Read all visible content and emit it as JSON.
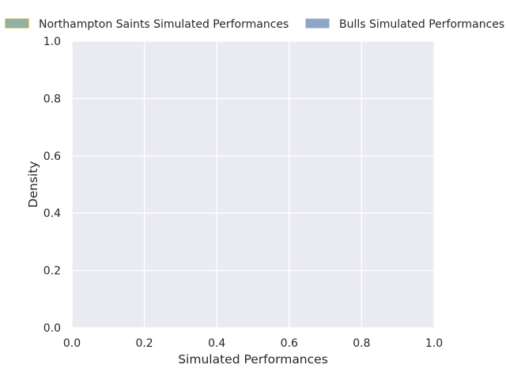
{
  "chart_data": {
    "type": "area",
    "title": "",
    "xlabel": "Simulated Performances",
    "ylabel": "Density",
    "xlim": [
      0.0,
      1.0
    ],
    "ylim": [
      0.0,
      1.0
    ],
    "xticks": [
      "0.0",
      "0.2",
      "0.4",
      "0.6",
      "0.8",
      "1.0"
    ],
    "yticks": [
      "0.0",
      "0.2",
      "0.4",
      "0.6",
      "0.8",
      "1.0"
    ],
    "grid": true,
    "legend_position": "top",
    "series": [
      {
        "name": "Northampton Saints Simulated Performances",
        "color": "#8fb1a6",
        "edge_color": "#c9a227",
        "values": []
      },
      {
        "name": "Bulls Simulated Performances",
        "color": "#8da6c8",
        "edge_color": "#8da6c8",
        "values": []
      }
    ],
    "background_color": "#eaeaf2"
  }
}
